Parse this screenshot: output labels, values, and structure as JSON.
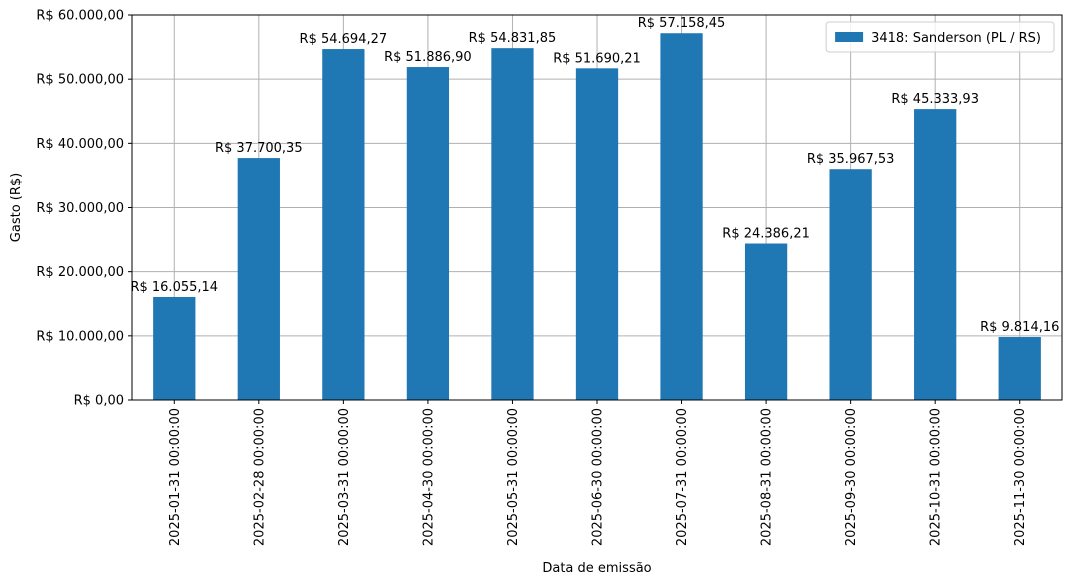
{
  "chart_data": {
    "type": "bar",
    "xlabel": "Data de emissão",
    "ylabel": "Gasto (R$)",
    "categories": [
      "2025-01-31 00:00:00",
      "2025-02-28 00:00:00",
      "2025-03-31 00:00:00",
      "2025-04-30 00:00:00",
      "2025-05-31 00:00:00",
      "2025-06-30 00:00:00",
      "2025-07-31 00:00:00",
      "2025-08-31 00:00:00",
      "2025-09-30 00:00:00",
      "2025-10-31 00:00:00",
      "2025-11-30 00:00:00"
    ],
    "series": [
      {
        "name": "3418: Sanderson (PL / RS)",
        "color": "#1f77b4",
        "values": [
          16055.14,
          37700.35,
          54694.27,
          51886.9,
          54831.85,
          51690.21,
          57158.45,
          24386.21,
          35967.53,
          45333.93,
          9814.16
        ],
        "data_labels": [
          "R$ 16.055,14",
          "R$ 37.700,35",
          "R$ 54.694,27",
          "R$ 51.886,90",
          "R$ 54.831,85",
          "R$ 51.690,21",
          "R$ 57.158,45",
          "R$ 24.386,21",
          "R$ 35.967,53",
          "R$ 45.333,93",
          "R$ 9.814,16"
        ]
      }
    ],
    "ylim": [
      0,
      60000
    ],
    "yticks": [
      0,
      10000,
      20000,
      30000,
      40000,
      50000,
      60000
    ],
    "ytick_labels": [
      "R$ 0,00",
      "R$ 10.000,00",
      "R$ 20.000,00",
      "R$ 30.000,00",
      "R$ 40.000,00",
      "R$ 50.000,00",
      "R$ 60.000,00"
    ],
    "grid": true,
    "legend_position": "top-right"
  }
}
